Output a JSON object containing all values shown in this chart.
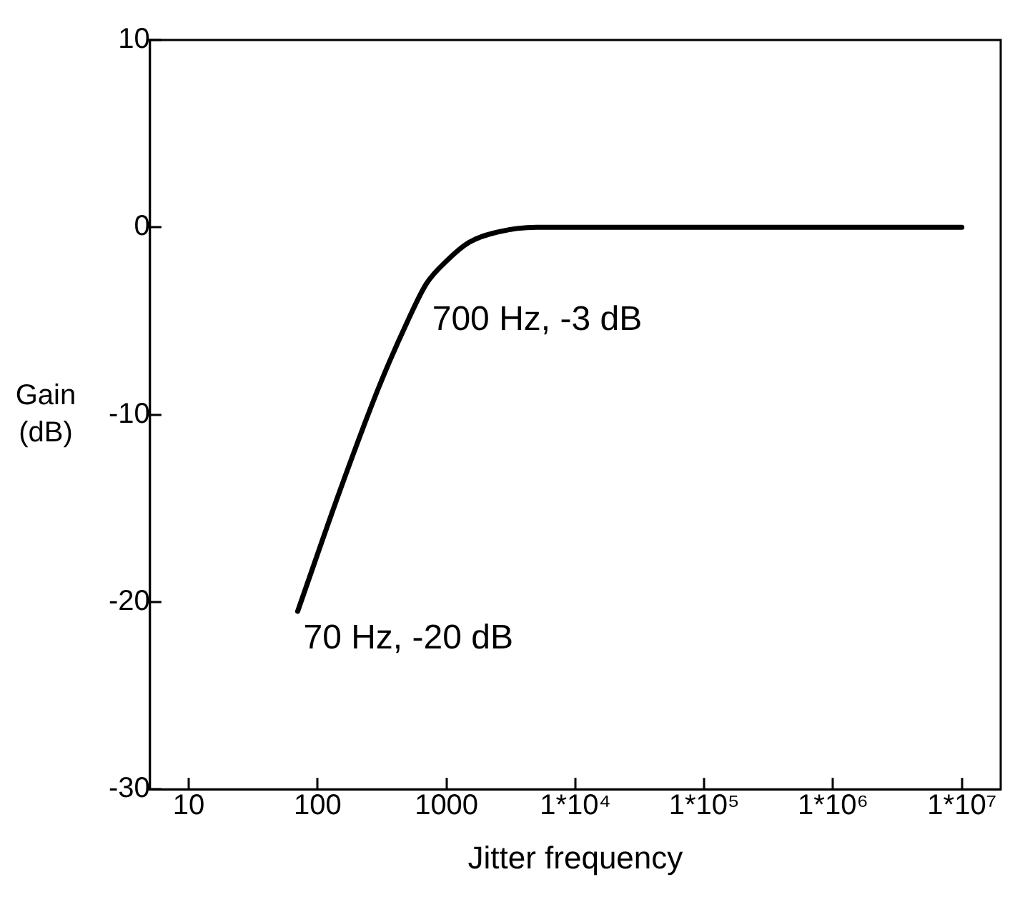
{
  "chart_data": {
    "type": "line",
    "xlabel": "Jitter frequency",
    "ylabel": "Gain (dB)",
    "x": [
      70,
      150,
      300,
      500,
      700,
      1000,
      1500,
      2500,
      5000,
      100000,
      10000000
    ],
    "series": [
      {
        "color": "#000000",
        "values": [
          -20.5,
          -14,
          -8.5,
          -5,
          -3,
          -1.8,
          -0.8,
          -0.25,
          0,
          0,
          0
        ]
      }
    ],
    "log": "x",
    "xlim": [
      5,
      20000000
    ],
    "xticks": [
      10,
      100,
      1000,
      {
        "value": 10000,
        "label": "1*10⁴"
      },
      {
        "value": 100000,
        "label": "1*10⁵"
      },
      {
        "value": 1000000,
        "label": "1*10⁶"
      },
      {
        "value": 10000000,
        "label": "1*10⁷"
      }
    ],
    "ylim": [
      -30,
      10
    ],
    "yticks": [
      -30,
      -20,
      -10,
      0,
      10
    ],
    "grid": false,
    "legend": false,
    "marker": "none",
    "line_style": "solid",
    "annotations": [
      {
        "text": "700 Hz, -3 dB",
        "x": 700,
        "y": -3
      },
      {
        "text": "70 Hz, -20 dB",
        "x": 70,
        "y": -20
      }
    ]
  }
}
